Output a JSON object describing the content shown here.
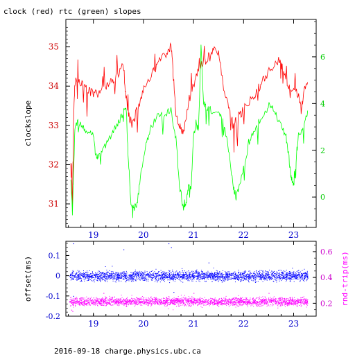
{
  "chart_data": [
    {
      "type": "line",
      "title": "clock (red) rtc (green) slopes",
      "ylabel": "clockslope",
      "xlabel": "",
      "xlim": [
        18.45,
        23.45
      ],
      "ylim": [
        30.4,
        35.7
      ],
      "y2lim": [
        -1.3,
        7.6
      ],
      "x_ticks": [
        "19",
        "20",
        "21",
        "22",
        "23"
      ],
      "y_ticks": [
        "31",
        "32",
        "33",
        "34",
        "35"
      ],
      "y2_ticks": [
        "0",
        "2",
        "4",
        "6"
      ],
      "series": [
        {
          "name": "clock",
          "color": "#ff0000",
          "axis": "left",
          "points": [
            [
              18.55,
              32.6
            ],
            [
              18.58,
              30.9
            ],
            [
              18.6,
              33.0
            ],
            [
              18.63,
              34.1
            ],
            [
              18.7,
              34.2
            ],
            [
              18.8,
              34.0
            ],
            [
              18.9,
              33.9
            ],
            [
              19.0,
              33.8
            ],
            [
              19.1,
              33.8
            ],
            [
              19.2,
              33.95
            ],
            [
              19.3,
              34.05
            ],
            [
              19.4,
              34.15
            ],
            [
              19.5,
              34.3
            ],
            [
              19.6,
              34.55
            ],
            [
              19.65,
              33.7
            ],
            [
              19.7,
              33.3
            ],
            [
              19.78,
              33.0
            ],
            [
              19.85,
              33.3
            ],
            [
              19.95,
              33.7
            ],
            [
              20.05,
              34.1
            ],
            [
              20.2,
              34.35
            ],
            [
              20.3,
              34.6
            ],
            [
              20.45,
              34.8
            ],
            [
              20.55,
              35.05
            ],
            [
              20.6,
              34.2
            ],
            [
              20.65,
              33.3
            ],
            [
              20.72,
              33.0
            ],
            [
              20.8,
              32.8
            ],
            [
              20.9,
              33.6
            ],
            [
              21.0,
              34.0
            ],
            [
              21.1,
              34.4
            ],
            [
              21.2,
              34.6
            ],
            [
              21.3,
              34.75
            ],
            [
              21.4,
              34.9
            ],
            [
              21.5,
              34.9
            ],
            [
              21.6,
              33.9
            ],
            [
              21.7,
              33.5
            ],
            [
              21.8,
              32.95
            ],
            [
              21.85,
              33.1
            ],
            [
              21.95,
              33.3
            ],
            [
              22.05,
              33.5
            ],
            [
              22.2,
              33.75
            ],
            [
              22.3,
              33.95
            ],
            [
              22.4,
              34.2
            ],
            [
              22.55,
              34.45
            ],
            [
              22.7,
              34.65
            ],
            [
              22.75,
              34.6
            ],
            [
              22.8,
              34.3
            ],
            [
              22.9,
              34.0
            ],
            [
              23.0,
              33.9
            ],
            [
              23.1,
              33.75
            ],
            [
              23.15,
              33.4
            ],
            [
              23.2,
              33.8
            ],
            [
              23.28,
              34.1
            ]
          ]
        },
        {
          "name": "rtc",
          "color": "#00ff00",
          "axis": "right",
          "points": [
            [
              18.55,
              0.8
            ],
            [
              18.58,
              -0.7
            ],
            [
              18.63,
              3.0
            ],
            [
              18.7,
              3.2
            ],
            [
              18.8,
              3.0
            ],
            [
              18.9,
              2.8
            ],
            [
              19.0,
              2.6
            ],
            [
              19.05,
              1.7
            ],
            [
              19.1,
              1.8
            ],
            [
              19.2,
              2.1
            ],
            [
              19.3,
              2.4
            ],
            [
              19.4,
              2.8
            ],
            [
              19.5,
              3.2
            ],
            [
              19.6,
              3.6
            ],
            [
              19.65,
              3.9
            ],
            [
              19.7,
              1.5
            ],
            [
              19.75,
              -0.2
            ],
            [
              19.8,
              -0.5
            ],
            [
              19.87,
              -0.3
            ],
            [
              19.95,
              1.0
            ],
            [
              20.05,
              2.2
            ],
            [
              20.15,
              3.0
            ],
            [
              20.3,
              3.5
            ],
            [
              20.45,
              3.6
            ],
            [
              20.55,
              3.7
            ],
            [
              20.65,
              2.5
            ],
            [
              20.72,
              0.5
            ],
            [
              20.8,
              -0.5
            ],
            [
              20.85,
              -0.3
            ],
            [
              20.9,
              0.5
            ],
            [
              20.95,
              0.3
            ],
            [
              21.0,
              2.6
            ],
            [
              21.05,
              3.2
            ],
            [
              21.1,
              2.8
            ],
            [
              21.15,
              6.5
            ],
            [
              21.2,
              4.0
            ],
            [
              21.25,
              3.9
            ],
            [
              21.35,
              3.7
            ],
            [
              21.5,
              3.6
            ],
            [
              21.6,
              3.3
            ],
            [
              21.7,
              2.0
            ],
            [
              21.8,
              0.4
            ],
            [
              21.85,
              0.0
            ],
            [
              21.9,
              0.3
            ],
            [
              22.0,
              1.2
            ],
            [
              22.1,
              2.2
            ],
            [
              22.2,
              2.8
            ],
            [
              22.3,
              3.2
            ],
            [
              22.45,
              3.6
            ],
            [
              22.55,
              3.9
            ],
            [
              22.65,
              3.5
            ],
            [
              22.75,
              3.0
            ],
            [
              22.85,
              2.6
            ],
            [
              22.9,
              1.8
            ],
            [
              22.95,
              0.8
            ],
            [
              23.0,
              0.5
            ],
            [
              23.05,
              1.5
            ],
            [
              23.1,
              2.7
            ],
            [
              23.2,
              3.0
            ],
            [
              23.28,
              3.7
            ]
          ]
        }
      ]
    },
    {
      "type": "scatter",
      "ylabel": "offset(ms)",
      "y2label": "rnd-trip(ms)",
      "xlim": [
        18.45,
        23.45
      ],
      "ylim": [
        -0.2,
        0.17
      ],
      "y2lim": [
        0.1,
        0.68
      ],
      "x_ticks": [
        "19",
        "20",
        "21",
        "22",
        "23"
      ],
      "y_ticks": [
        "0.1",
        "0",
        "-0.1",
        "-0.2"
      ],
      "y2_ticks": [
        "0.6",
        "0.4",
        "0.2"
      ],
      "series": [
        {
          "name": "offset",
          "color": "#0000ff",
          "axis": "left",
          "x_range": [
            18.52,
            23.28
          ],
          "y_band": [
            -0.035,
            0.035
          ],
          "outliers": [
            [
              18.6,
              0.16
            ],
            [
              19.6,
              0.13
            ],
            [
              20.5,
              0.16
            ],
            [
              20.55,
              0.14
            ],
            [
              21.3,
              0.065
            ],
            [
              18.6,
              -0.1
            ],
            [
              20.6,
              -0.08
            ]
          ]
        },
        {
          "name": "rnd-trip",
          "color": "#ff00ff",
          "axis": "right",
          "x_range": [
            18.52,
            23.28
          ],
          "y_band": [
            0.17,
            0.26
          ],
          "outliers": [
            [
              18.56,
              0.15
            ],
            [
              18.58,
              0.14
            ],
            [
              19.2,
              0.28
            ],
            [
              21.0,
              0.28
            ],
            [
              22.5,
              0.28
            ]
          ]
        }
      ]
    }
  ],
  "footer": "2016-09-18  charge.physics.ubc.ca"
}
